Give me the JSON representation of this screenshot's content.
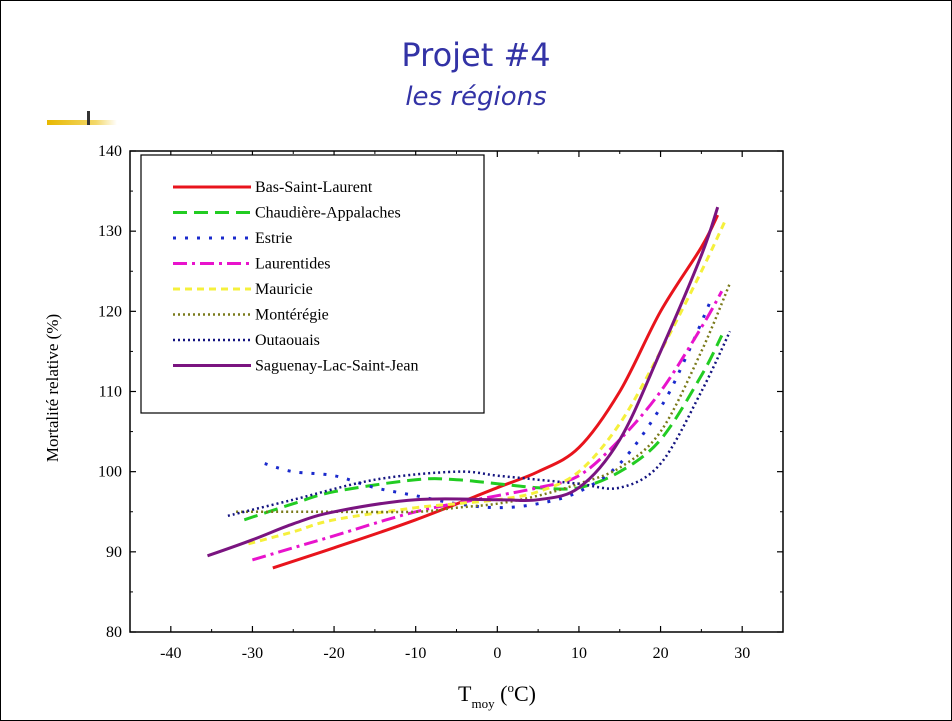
{
  "slide": {
    "title": "Projet #4",
    "subtitle": "les régions"
  },
  "chart_data": {
    "type": "line",
    "title": "",
    "xlabel_main": "T",
    "xlabel_sub": "moy",
    "xlabel_unit_open": " (",
    "xlabel_unit_deg": "o",
    "xlabel_unit_close": "C)",
    "ylabel": "Mortalité relative (%)",
    "xlim": [
      -45,
      35
    ],
    "ylim": [
      80,
      140
    ],
    "xticks": [
      -40,
      -30,
      -20,
      -10,
      0,
      10,
      20,
      30
    ],
    "yticks": [
      80,
      90,
      100,
      110,
      120,
      130,
      140
    ],
    "grid": false,
    "legend_position": "top-left",
    "series": [
      {
        "name": "Bas-Saint-Laurent",
        "color": "#e8141c",
        "dash": "",
        "width": 3,
        "x": [
          -27.5,
          -20,
          -10,
          0,
          5,
          10,
          15,
          20,
          25,
          27
        ],
        "y": [
          88,
          90.5,
          94,
          98,
          100,
          103,
          110,
          120,
          128,
          132
        ]
      },
      {
        "name": "Chaudière-Appalaches",
        "color": "#22cc22",
        "dash": "14 7",
        "width": 3,
        "x": [
          -31,
          -25,
          -20,
          -10,
          -5,
          0,
          5,
          10,
          15,
          20,
          25,
          27.5
        ],
        "y": [
          94,
          96,
          97.5,
          99,
          99,
          98.5,
          98,
          98,
          100,
          104,
          112,
          117
        ]
      },
      {
        "name": "Estrie",
        "color": "#1a2acc",
        "dash": "3 9",
        "width": 3,
        "x": [
          -28.5,
          -25,
          -20,
          -15,
          -10,
          -5,
          0,
          5,
          10,
          15,
          20,
          23,
          26
        ],
        "y": [
          101,
          100,
          99.5,
          98,
          97,
          96,
          95.5,
          96,
          97.5,
          101,
          108,
          114,
          121
        ]
      },
      {
        "name": "Laurentides",
        "color": "#e813cc",
        "dash": "14 5 3 5",
        "width": 3,
        "x": [
          -30,
          -25,
          -20,
          -10,
          0,
          5,
          10,
          15,
          20,
          25,
          27.5
        ],
        "y": [
          89,
          90.5,
          92,
          95,
          97,
          98,
          99.5,
          104,
          110,
          118,
          122.5
        ]
      },
      {
        "name": "Mauricie",
        "color": "#f5f03c",
        "dash": "7 5",
        "width": 3,
        "x": [
          -30.5,
          -25,
          -20,
          -10,
          -5,
          0,
          5,
          10,
          15,
          20,
          25,
          28
        ],
        "y": [
          91,
          92.5,
          94,
          95.5,
          96,
          96.5,
          97.5,
          100,
          106,
          115,
          125,
          131.5
        ]
      },
      {
        "name": "Montérégie",
        "color": "#7a7a1a",
        "dash": "2 3",
        "width": 2.5,
        "x": [
          -32,
          -25,
          -20,
          -10,
          -5,
          0,
          5,
          10,
          15,
          20,
          25,
          28.5
        ],
        "y": [
          95,
          95,
          95,
          95,
          95.5,
          96,
          97,
          98.5,
          100.5,
          105,
          115,
          123.5
        ]
      },
      {
        "name": "Outaouais",
        "color": "#141480",
        "dash": "2 3",
        "width": 2.5,
        "x": [
          -33,
          -25,
          -15,
          -5,
          0,
          5,
          10,
          15,
          20,
          25,
          28.5
        ],
        "y": [
          94.5,
          96.5,
          99,
          100,
          99.5,
          99,
          98.5,
          98,
          101,
          110,
          117.5
        ]
      },
      {
        "name": "Saguenay-Lac-Saint-Jean",
        "color": "#7a1480",
        "dash": "",
        "width": 3,
        "x": [
          -35.5,
          -30,
          -25,
          -20,
          -10,
          0,
          5,
          10,
          15,
          20,
          25,
          27
        ],
        "y": [
          89.5,
          91.5,
          93.5,
          95,
          96.5,
          96.5,
          96.5,
          98,
          104,
          115,
          127,
          133
        ]
      }
    ]
  }
}
